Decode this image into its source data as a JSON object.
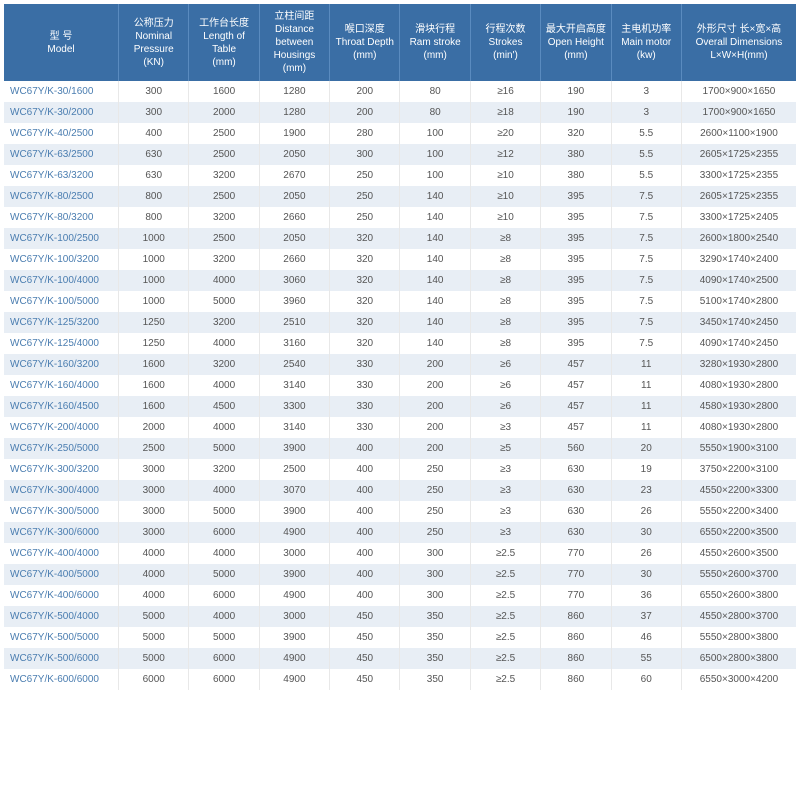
{
  "table": {
    "header_bg": "#3a6ea5",
    "header_fg": "#ffffff",
    "row_odd_bg": "#ffffff",
    "row_even_bg": "#e8eef5",
    "model_color": "#4a7db0",
    "cell_color": "#555555",
    "font_size_pt": 10,
    "columns": [
      {
        "key": "model",
        "zh": "型 号",
        "en": "Model",
        "unit": ""
      },
      {
        "key": "pressure",
        "zh": "公称压力",
        "en": "Nominal Pressure",
        "unit": "(KN)"
      },
      {
        "key": "length",
        "zh": "工作台长度",
        "en": "Length of Table",
        "unit": "(mm)"
      },
      {
        "key": "distance",
        "zh": "立柱间距",
        "en": "Distance between Housings",
        "unit": "(mm)"
      },
      {
        "key": "throat",
        "zh": "喉口深度",
        "en": "Throat Depth",
        "unit": "(mm)"
      },
      {
        "key": "ram",
        "zh": "滑块行程",
        "en": "Ram stroke",
        "unit": "(mm)"
      },
      {
        "key": "strokes",
        "zh": "行程次数",
        "en": "Strokes",
        "unit": "(min')"
      },
      {
        "key": "open",
        "zh": "最大开启高度",
        "en": "Open Height",
        "unit": "(mm)"
      },
      {
        "key": "motor",
        "zh": "主电机功率",
        "en": "Main motor",
        "unit": "(kw)"
      },
      {
        "key": "dims",
        "zh": "外形尺寸 长×宽×高",
        "en": "Overall Dimensions",
        "unit": "L×W×H(mm)"
      }
    ],
    "rows": [
      [
        "WC67Y/K-30/1600",
        "300",
        "1600",
        "1280",
        "200",
        "80",
        "≥16",
        "190",
        "3",
        "1700×900×1650"
      ],
      [
        "WC67Y/K-30/2000",
        "300",
        "2000",
        "1280",
        "200",
        "80",
        "≥18",
        "190",
        "3",
        "1700×900×1650"
      ],
      [
        "WC67Y/K-40/2500",
        "400",
        "2500",
        "1900",
        "280",
        "100",
        "≥20",
        "320",
        "5.5",
        "2600×1100×1900"
      ],
      [
        "WC67Y/K-63/2500",
        "630",
        "2500",
        "2050",
        "300",
        "100",
        "≥12",
        "380",
        "5.5",
        "2605×1725×2355"
      ],
      [
        "WC67Y/K-63/3200",
        "630",
        "3200",
        "2670",
        "250",
        "100",
        "≥10",
        "380",
        "5.5",
        "3300×1725×2355"
      ],
      [
        "WC67Y/K-80/2500",
        "800",
        "2500",
        "2050",
        "250",
        "140",
        "≥10",
        "395",
        "7.5",
        "2605×1725×2355"
      ],
      [
        "WC67Y/K-80/3200",
        "800",
        "3200",
        "2660",
        "250",
        "140",
        "≥10",
        "395",
        "7.5",
        "3300×1725×2405"
      ],
      [
        "WC67Y/K-100/2500",
        "1000",
        "2500",
        "2050",
        "320",
        "140",
        "≥8",
        "395",
        "7.5",
        "2600×1800×2540"
      ],
      [
        "WC67Y/K-100/3200",
        "1000",
        "3200",
        "2660",
        "320",
        "140",
        "≥8",
        "395",
        "7.5",
        "3290×1740×2400"
      ],
      [
        "WC67Y/K-100/4000",
        "1000",
        "4000",
        "3060",
        "320",
        "140",
        "≥8",
        "395",
        "7.5",
        "4090×1740×2500"
      ],
      [
        "WC67Y/K-100/5000",
        "1000",
        "5000",
        "3960",
        "320",
        "140",
        "≥8",
        "395",
        "7.5",
        "5100×1740×2800"
      ],
      [
        "WC67Y/K-125/3200",
        "1250",
        "3200",
        "2510",
        "320",
        "140",
        "≥8",
        "395",
        "7.5",
        "3450×1740×2450"
      ],
      [
        "WC67Y/K-125/4000",
        "1250",
        "4000",
        "3160",
        "320",
        "140",
        "≥8",
        "395",
        "7.5",
        "4090×1740×2450"
      ],
      [
        "WC67Y/K-160/3200",
        "1600",
        "3200",
        "2540",
        "330",
        "200",
        "≥6",
        "457",
        "11",
        "3280×1930×2800"
      ],
      [
        "WC67Y/K-160/4000",
        "1600",
        "4000",
        "3140",
        "330",
        "200",
        "≥6",
        "457",
        "11",
        "4080×1930×2800"
      ],
      [
        "WC67Y/K-160/4500",
        "1600",
        "4500",
        "3300",
        "330",
        "200",
        "≥6",
        "457",
        "11",
        "4580×1930×2800"
      ],
      [
        "WC67Y/K-200/4000",
        "2000",
        "4000",
        "3140",
        "330",
        "200",
        "≥3",
        "457",
        "11",
        "4080×1930×2800"
      ],
      [
        "WC67Y/K-250/5000",
        "2500",
        "5000",
        "3900",
        "400",
        "200",
        "≥5",
        "560",
        "20",
        "5550×1900×3100"
      ],
      [
        "WC67Y/K-300/3200",
        "3000",
        "3200",
        "2500",
        "400",
        "250",
        "≥3",
        "630",
        "19",
        "3750×2200×3100"
      ],
      [
        "WC67Y/K-300/4000",
        "3000",
        "4000",
        "3070",
        "400",
        "250",
        "≥3",
        "630",
        "23",
        "4550×2200×3300"
      ],
      [
        "WC67Y/K-300/5000",
        "3000",
        "5000",
        "3900",
        "400",
        "250",
        "≥3",
        "630",
        "26",
        "5550×2200×3400"
      ],
      [
        "WC67Y/K-300/6000",
        "3000",
        "6000",
        "4900",
        "400",
        "250",
        "≥3",
        "630",
        "30",
        "6550×2200×3500"
      ],
      [
        "WC67Y/K-400/4000",
        "4000",
        "4000",
        "3000",
        "400",
        "300",
        "≥2.5",
        "770",
        "26",
        "4550×2600×3500"
      ],
      [
        "WC67Y/K-400/5000",
        "4000",
        "5000",
        "3900",
        "400",
        "300",
        "≥2.5",
        "770",
        "30",
        "5550×2600×3700"
      ],
      [
        "WC67Y/K-400/6000",
        "4000",
        "6000",
        "4900",
        "400",
        "300",
        "≥2.5",
        "770",
        "36",
        "6550×2600×3800"
      ],
      [
        "WC67Y/K-500/4000",
        "5000",
        "4000",
        "3000",
        "450",
        "350",
        "≥2.5",
        "860",
        "37",
        "4550×2800×3700"
      ],
      [
        "WC67Y/K-500/5000",
        "5000",
        "5000",
        "3900",
        "450",
        "350",
        "≥2.5",
        "860",
        "46",
        "5550×2800×3800"
      ],
      [
        "WC67Y/K-500/6000",
        "5000",
        "6000",
        "4900",
        "450",
        "350",
        "≥2.5",
        "860",
        "55",
        "6500×2800×3800"
      ],
      [
        "WC67Y/K-600/6000",
        "6000",
        "6000",
        "4900",
        "450",
        "350",
        "≥2.5",
        "860",
        "60",
        "6550×3000×4200"
      ]
    ]
  }
}
